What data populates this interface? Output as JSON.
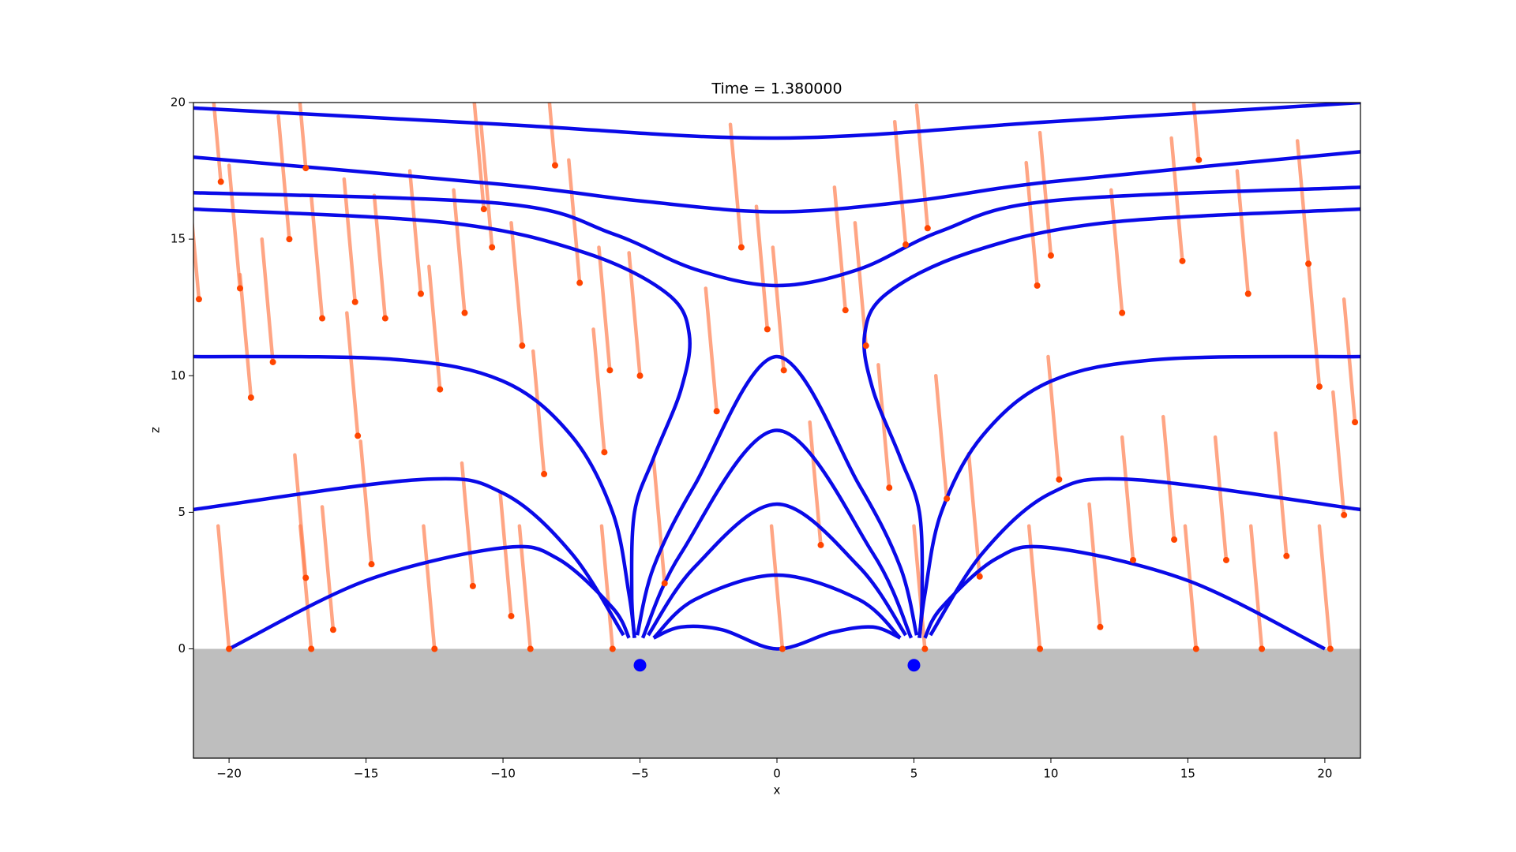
{
  "chart_data": {
    "type": "line",
    "title": "Time = 1.380000",
    "xlabel": "x",
    "ylabel": "z",
    "xlim": [
      -21.3,
      21.3
    ],
    "ylim": [
      -4,
      20
    ],
    "xticks": [
      {
        "value": -20,
        "label": "−20"
      },
      {
        "value": -15,
        "label": "−15"
      },
      {
        "value": -10,
        "label": "−10"
      },
      {
        "value": -5,
        "label": "−5"
      },
      0,
      5,
      10,
      15,
      20
    ],
    "yticks": [
      0,
      5,
      10,
      15,
      20
    ],
    "ground": {
      "color": "#bebebe",
      "top": 0
    },
    "field_lines": {
      "color": "#0a0ae8",
      "lines": [
        {
          "x": [
            -21.3,
            -10,
            0,
            10,
            21.3
          ],
          "y": [
            19.8,
            19.2,
            18.7,
            19.3,
            20
          ]
        },
        {
          "x": [
            -21.3,
            -10,
            -5,
            0,
            5,
            10,
            21.3
          ],
          "y": [
            18,
            17,
            16.4,
            16,
            16.4,
            17.1,
            18.2
          ]
        },
        {
          "x": [
            -21.3,
            -10,
            -6,
            -3,
            0,
            3,
            6,
            10,
            21.3
          ],
          "y": [
            16.7,
            16.3,
            15.2,
            13.9,
            13.3,
            13.9,
            15.3,
            16.4,
            16.9
          ]
        },
        {
          "x": [
            -21.3,
            -12,
            -7,
            -4,
            -3.2,
            -3.5,
            -4.5,
            -5.2,
            -5.3,
            -5.2
          ],
          "y": [
            16.1,
            15.6,
            14.5,
            13,
            11.5,
            9.5,
            7,
            5,
            2,
            0.4
          ]
        },
        {
          "x": [
            21.3,
            12,
            7,
            4,
            3.2,
            3.5,
            4.5,
            5.2,
            5.3,
            5.2
          ],
          "y": [
            16.1,
            15.6,
            14.5,
            13,
            11.5,
            9.5,
            7,
            5,
            2,
            0.4
          ]
        },
        {
          "x": [
            -21.3,
            -14,
            -10,
            -7.5,
            -6,
            -5.4,
            -5.2
          ],
          "y": [
            10.7,
            10.6,
            9.8,
            7.8,
            5,
            2,
            0.4
          ]
        },
        {
          "x": [
            21.3,
            14,
            10,
            7.5,
            6,
            5.4,
            5.2
          ],
          "y": [
            10.7,
            10.6,
            9.8,
            7.8,
            5,
            2,
            0.4
          ]
        },
        {
          "x": [
            -21.3,
            -13,
            -10,
            -7.5,
            -5.6
          ],
          "y": [
            5.1,
            6.2,
            5.7,
            3.5,
            0.5
          ]
        },
        {
          "x": [
            21.3,
            13,
            10,
            7.5,
            5.6
          ],
          "y": [
            5.1,
            6.2,
            5.7,
            3.5,
            0.5
          ]
        },
        {
          "x": [
            -20,
            -15,
            -10,
            -8,
            -6,
            -5.4
          ],
          "y": [
            0,
            2.5,
            3.7,
            3.3,
            1.5,
            0.4
          ]
        },
        {
          "x": [
            20,
            15,
            10,
            8,
            6,
            5.4
          ],
          "y": [
            0,
            2.5,
            3.7,
            3.3,
            1.5,
            0.4
          ]
        },
        {
          "x": [
            -5.1,
            -4.5,
            -3,
            0,
            3,
            4.5,
            5.1
          ],
          "y": [
            0.5,
            3,
            6,
            10.7,
            6,
            3,
            0.5
          ]
        },
        {
          "x": [
            -4.9,
            -3.5,
            0,
            3.5,
            4.9
          ],
          "y": [
            0.4,
            3.5,
            8,
            3.5,
            0.4
          ]
        },
        {
          "x": [
            -4.7,
            -3,
            0,
            3,
            4.7
          ],
          "y": [
            0.5,
            3,
            5.3,
            3,
            0.5
          ]
        },
        {
          "x": [
            -4.5,
            -3,
            0,
            3,
            4.5
          ],
          "y": [
            0.4,
            1.8,
            2.7,
            1.8,
            0.4
          ]
        },
        {
          "x": [
            -4.5,
            -3.5,
            -2,
            0,
            2,
            3.5,
            4.5
          ],
          "y": [
            0.4,
            0.8,
            0.7,
            0,
            0.6,
            0.8,
            0.4
          ]
        }
      ]
    },
    "particles": {
      "trail_color": "#ff7f50",
      "trail_opacity": 0.7,
      "color": "#ff4500",
      "trails": [
        [
          -21.5,
          17.3,
          -21.1,
          12.8
        ],
        [
          -20.7,
          21.6,
          -20.3,
          17.1
        ],
        [
          -20,
          17.7,
          -19.6,
          13.2
        ],
        [
          -19.6,
          13.7,
          -19.2,
          9.2
        ],
        [
          -18.8,
          15,
          -18.4,
          10.5
        ],
        [
          -18.2,
          19.5,
          -17.8,
          15
        ],
        [
          -17.6,
          22.1,
          -17.2,
          17.6
        ],
        [
          -17.6,
          7.1,
          -17.2,
          2.6
        ],
        [
          -17,
          16.6,
          -16.6,
          12.1
        ],
        [
          -16.6,
          5.2,
          -16.2,
          0.7
        ],
        [
          -15.8,
          17.2,
          -15.4,
          12.7
        ],
        [
          -15.7,
          12.3,
          -15.3,
          7.8
        ],
        [
          -15.2,
          7.6,
          -14.8,
          3.1
        ],
        [
          -14.7,
          16.6,
          -14.3,
          12.1
        ],
        [
          -13.4,
          17.5,
          -13,
          13
        ],
        [
          -12.7,
          14,
          -12.3,
          9.5
        ],
        [
          -11.8,
          16.8,
          -11.4,
          12.3
        ],
        [
          -11.5,
          6.8,
          -11.1,
          2.3
        ],
        [
          -11.1,
          20.6,
          -10.7,
          16.1
        ],
        [
          -10.8,
          19.2,
          -10.4,
          14.7
        ],
        [
          -10.1,
          5.7,
          -9.7,
          1.2
        ],
        [
          -9.7,
          15.6,
          -9.3,
          11.1
        ],
        [
          -8.9,
          10.9,
          -8.5,
          6.4
        ],
        [
          -8.5,
          22.2,
          -8.1,
          17.7
        ],
        [
          -7.6,
          17.9,
          -7.2,
          13.4
        ],
        [
          -6.7,
          11.7,
          -6.3,
          7.2
        ],
        [
          -6.5,
          14.7,
          -6.1,
          10.2
        ],
        [
          -5.4,
          14.5,
          -5,
          10
        ],
        [
          -4.5,
          6.9,
          -4.1,
          2.4
        ],
        [
          -2.6,
          13.2,
          -2.2,
          8.7
        ],
        [
          -1.7,
          19.2,
          -1.3,
          14.7
        ],
        [
          -0.75,
          16.2,
          -0.35,
          11.7
        ],
        [
          -0.15,
          14.7,
          0.25,
          10.2
        ],
        [
          1.2,
          8.3,
          1.6,
          3.8
        ],
        [
          2.1,
          16.9,
          2.5,
          12.4
        ],
        [
          2.85,
          15.6,
          3.25,
          11.1
        ],
        [
          3.7,
          10.4,
          4.1,
          5.9
        ],
        [
          4.3,
          19.3,
          4.7,
          14.8
        ],
        [
          5.1,
          19.9,
          5.5,
          15.4
        ],
        [
          5.8,
          10,
          6.2,
          5.5
        ],
        [
          7,
          7.15,
          7.4,
          2.65
        ],
        [
          9.1,
          17.8,
          9.5,
          13.3
        ],
        [
          9.6,
          18.9,
          10,
          14.4
        ],
        [
          9.9,
          10.7,
          10.3,
          6.2
        ],
        [
          11.4,
          5.3,
          11.8,
          0.8
        ],
        [
          12.2,
          16.8,
          12.6,
          12.3
        ],
        [
          12.6,
          7.75,
          13,
          3.25
        ],
        [
          14.1,
          8.5,
          14.5,
          4
        ],
        [
          14.4,
          18.7,
          14.8,
          14.2
        ],
        [
          15,
          22.4,
          15.4,
          17.9
        ],
        [
          16,
          7.75,
          16.4,
          3.25
        ],
        [
          16.8,
          17.5,
          17.2,
          13
        ],
        [
          18.2,
          7.9,
          18.6,
          3.4
        ],
        [
          19,
          18.6,
          19.4,
          14.1
        ],
        [
          19.4,
          14.1,
          19.8,
          9.6
        ],
        [
          20.3,
          9.4,
          20.7,
          4.9
        ],
        [
          20.7,
          12.8,
          21.1,
          8.3
        ],
        [
          -20.4,
          4.5,
          -20,
          0
        ],
        [
          -17.4,
          4.5,
          -17,
          0
        ],
        [
          -12.9,
          4.5,
          -12.5,
          0
        ],
        [
          -9.4,
          4.5,
          -9,
          0
        ],
        [
          -6.4,
          4.5,
          -6,
          0
        ],
        [
          -0.2,
          4.5,
          0.2,
          0
        ],
        [
          5,
          4.5,
          5.4,
          0
        ],
        [
          9.2,
          4.5,
          9.6,
          0
        ],
        [
          14.9,
          4.5,
          15.3,
          0
        ],
        [
          17.3,
          4.5,
          17.7,
          0
        ],
        [
          19.8,
          4.5,
          20.2,
          0
        ]
      ]
    },
    "sources": {
      "color": "#0000ff",
      "x": [
        -5,
        5
      ],
      "y": [
        -0.6,
        -0.6
      ]
    }
  }
}
